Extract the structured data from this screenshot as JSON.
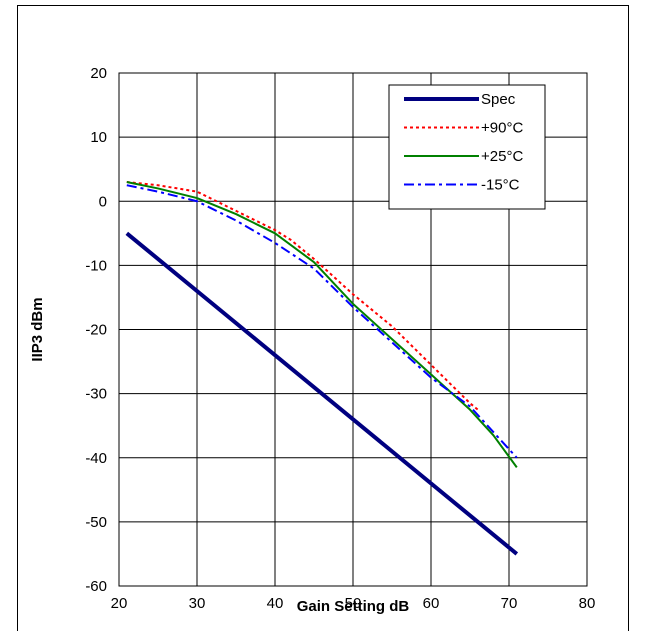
{
  "chart_data": {
    "type": "line",
    "title": "",
    "xlabel": "Gain Setting dB",
    "ylabel": "IIP3 dBm",
    "xlim": [
      20,
      80
    ],
    "ylim": [
      -60,
      20
    ],
    "xticks": [
      20,
      30,
      40,
      50,
      60,
      70,
      80
    ],
    "yticks": [
      -60,
      -50,
      -40,
      -30,
      -20,
      -10,
      0,
      10,
      20
    ],
    "grid": true,
    "legend_position": "top-right",
    "series": [
      {
        "name": "Spec",
        "color": "#000080",
        "style": "solid-thick",
        "x": [
          21,
          71
        ],
        "y": [
          -5,
          -55
        ]
      },
      {
        "name": "+90°C",
        "color": "#ff0000",
        "style": "dotted",
        "x": [
          21,
          25,
          30,
          35,
          40,
          42,
          45,
          50,
          55,
          60,
          65,
          66
        ],
        "y": [
          3,
          2.5,
          1.5,
          -1.5,
          -4.5,
          -6,
          -9,
          -14.5,
          -19.5,
          -25.5,
          -31.5,
          -32.5
        ]
      },
      {
        "name": "+25°C",
        "color": "#008000",
        "style": "solid",
        "x": [
          21,
          25,
          30,
          35,
          40,
          45,
          50,
          55,
          60,
          65,
          68,
          71
        ],
        "y": [
          3,
          2,
          0.5,
          -2,
          -5,
          -9.5,
          -16,
          -21.5,
          -27,
          -32.5,
          -36.5,
          -41.5
        ]
      },
      {
        "name": "-15°C",
        "color": "#0000ff",
        "style": "dash-dot",
        "x": [
          21,
          25,
          30,
          35,
          40,
          45,
          50,
          55,
          60,
          65,
          68,
          71
        ],
        "y": [
          2.5,
          1.5,
          0,
          -3,
          -6.5,
          -10.5,
          -16.5,
          -22,
          -27.5,
          -32,
          -36,
          -40
        ]
      }
    ]
  }
}
